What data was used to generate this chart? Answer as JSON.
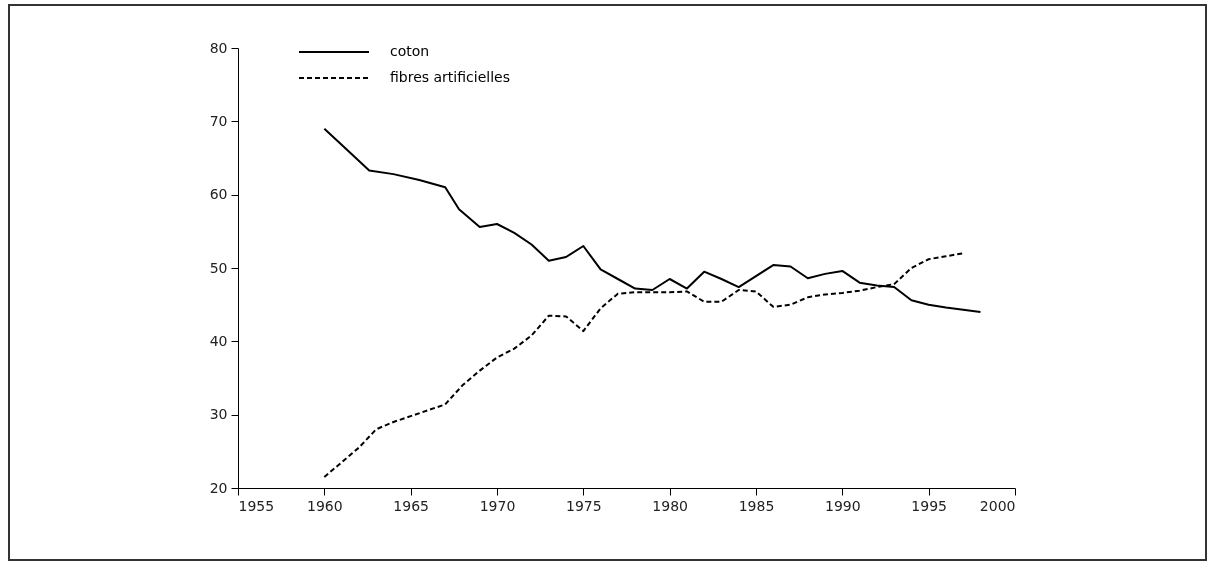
{
  "chart_data": {
    "type": "line",
    "xlim": [
      1955,
      2000
    ],
    "xticks": [
      1955,
      1960,
      1965,
      1970,
      1975,
      1980,
      1985,
      1990,
      1995,
      2000
    ],
    "ylim": [
      20,
      80
    ],
    "yticks": [
      20,
      30,
      40,
      50,
      60,
      70,
      80
    ],
    "grid": false,
    "legend": "top left",
    "marker": "none",
    "series": [
      {
        "name": "coton",
        "color": "#000000",
        "line_style": "solid",
        "x": [
          1960,
          1961,
          1962.6,
          1964,
          1965.5,
          1967,
          1967.8,
          1969,
          1970,
          1971,
          1972,
          1973,
          1974,
          1975,
          1976,
          1977,
          1978,
          1979,
          1980,
          1981,
          1982,
          1983,
          1984,
          1986,
          1987,
          1988,
          1989,
          1990,
          1991,
          1992,
          1993,
          1994,
          1995,
          1996,
          1998
        ],
        "values": [
          69.0,
          66.8,
          63.3,
          62.8,
          62.0,
          61.0,
          58.0,
          55.6,
          56.0,
          54.8,
          53.2,
          51.0,
          51.5,
          53.0,
          49.8,
          48.5,
          47.2,
          47.0,
          48.5,
          47.2,
          49.5,
          48.5,
          47.4,
          50.4,
          50.2,
          48.6,
          49.2,
          49.6,
          48.0,
          47.6,
          47.4,
          45.6,
          45.0,
          44.6,
          44.0
        ]
      },
      {
        "name": "fibres artificielles",
        "color": "#000000",
        "line_style": "dashed",
        "x": [
          1960,
          1961,
          1962,
          1963,
          1964,
          1965,
          1966,
          1967,
          1968,
          1969,
          1970,
          1971,
          1972,
          1973,
          1974,
          1975,
          1976,
          1977,
          1978,
          1979,
          1980,
          1981,
          1982,
          1983,
          1984,
          1985,
          1986,
          1987,
          1988,
          1989,
          1990,
          1991,
          1992,
          1993,
          1994,
          1995,
          1996,
          1997
        ],
        "values": [
          21.5,
          23.5,
          25.5,
          28.0,
          29.0,
          29.8,
          30.6,
          31.4,
          34.0,
          36.0,
          37.8,
          39.0,
          40.8,
          43.5,
          43.4,
          41.4,
          44.5,
          46.5,
          46.7,
          46.7,
          46.7,
          46.8,
          45.4,
          45.4,
          47.0,
          46.8,
          44.7,
          45.0,
          46.0,
          46.4,
          46.6,
          46.9,
          47.4,
          47.8,
          50.0,
          51.2,
          51.6,
          52.0
        ]
      }
    ]
  }
}
